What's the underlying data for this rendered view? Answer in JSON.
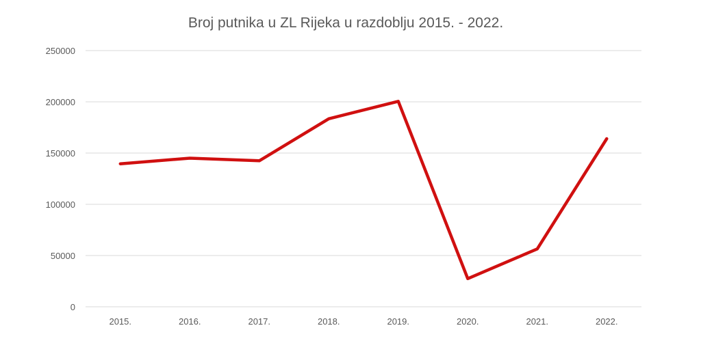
{
  "chart_data": {
    "type": "line",
    "title": "Broj putnika u ZL Rijeka u razdoblju 2015. - 2022.",
    "categories": [
      "2015.",
      "2016.",
      "2017.",
      "2018.",
      "2019.",
      "2020.",
      "2021.",
      "2022."
    ],
    "series": [
      {
        "values": [
          139500,
          145000,
          142500,
          183500,
          200500,
          27500,
          56500,
          164000
        ],
        "color": "#d01010"
      }
    ],
    "ylim": [
      0,
      250000
    ],
    "yticks": [
      "0",
      "50000",
      "100000",
      "150000",
      "200000",
      "250000"
    ],
    "grid": true,
    "legend": "none"
  }
}
